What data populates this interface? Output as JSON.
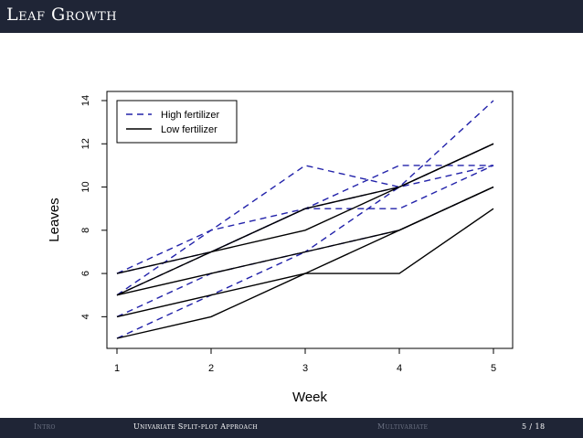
{
  "slide": {
    "title": "Leaf Growth",
    "footer": {
      "sections": [
        {
          "label": "Intro",
          "active": false
        },
        {
          "label": "Univariate Split-plot Approach",
          "active": true
        },
        {
          "label": "Multivariate",
          "active": false
        }
      ],
      "page": "5 / 18"
    }
  },
  "colors": {
    "high": "#2222aa",
    "low": "#000000",
    "bar": "#1f2536"
  },
  "chart_data": {
    "type": "line",
    "title": "",
    "xlabel": "Week",
    "ylabel": "Leaves",
    "x": [
      1,
      2,
      3,
      4,
      5
    ],
    "x_tick_labels": [
      "1",
      "2",
      "3",
      "4",
      "5"
    ],
    "y_tick_labels": [
      "4",
      "6",
      "8",
      "10",
      "12",
      "14"
    ],
    "xlim": [
      1,
      5
    ],
    "ylim": [
      3,
      14
    ],
    "legend": {
      "position": "top-left",
      "entries": [
        {
          "label": "High fertilizer",
          "style": "dashed",
          "color": "#2222aa"
        },
        {
          "label": "Low fertilizer",
          "style": "solid",
          "color": "#000000"
        }
      ]
    },
    "series": [
      {
        "name": "High fertilizer",
        "values": [
          6,
          8,
          11,
          10,
          14
        ]
      },
      {
        "name": "High fertilizer",
        "values": [
          5,
          8,
          9,
          9,
          11
        ]
      },
      {
        "name": "High fertilizer",
        "values": [
          6,
          7,
          9,
          11,
          11
        ]
      },
      {
        "name": "High fertilizer",
        "values": [
          5,
          7,
          9,
          10,
          12
        ]
      },
      {
        "name": "High fertilizer",
        "values": [
          4,
          6,
          7,
          10,
          11
        ]
      },
      {
        "name": "High fertilizer",
        "values": [
          3,
          5,
          7,
          8,
          10
        ]
      },
      {
        "name": "Low fertilizer",
        "values": [
          6,
          7,
          8,
          10,
          12
        ]
      },
      {
        "name": "Low fertilizer",
        "values": [
          5,
          7,
          9,
          10,
          12
        ]
      },
      {
        "name": "Low fertilizer",
        "values": [
          5,
          6,
          7,
          8,
          10
        ]
      },
      {
        "name": "Low fertilizer",
        "values": [
          4,
          5,
          6,
          8,
          10
        ]
      },
      {
        "name": "Low fertilizer",
        "values": [
          3,
          4,
          6,
          6,
          9
        ]
      }
    ]
  }
}
